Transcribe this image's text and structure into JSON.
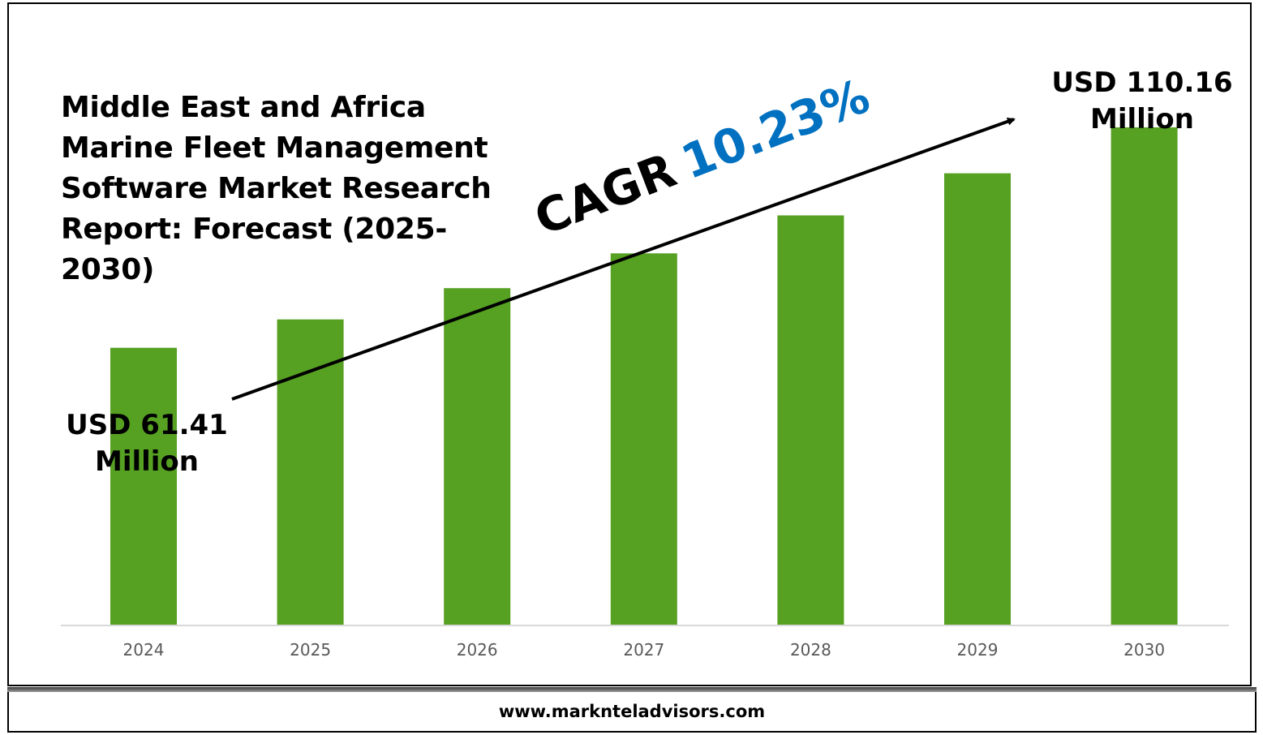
{
  "chart_data": {
    "type": "bar",
    "title": "Middle East and Africa Marine Fleet Management Software Market Research Report: Forecast (2025-2030)",
    "categories": [
      "2024",
      "2025",
      "2026",
      "2027",
      "2028",
      "2029",
      "2030"
    ],
    "values": [
      61.41,
      67.7,
      74.6,
      82.3,
      90.7,
      100.0,
      110.16
    ],
    "unit": "USD Million",
    "xlabel": "",
    "ylabel": "",
    "ylim": [
      0,
      122
    ],
    "grid": false,
    "colors": {
      "bar": "#56a022",
      "axis": "#d9d9d9",
      "cagr_value": "#0070c0"
    },
    "annotations": {
      "start_label_line1": "USD 61.41",
      "start_label_line2": "Million",
      "end_label_line1": "USD 110.16",
      "end_label_line2": "Million",
      "cagr_word": "CAGR",
      "cagr_value": "10.23%"
    }
  },
  "footer": {
    "website": "www.marknteladvisors.com"
  }
}
